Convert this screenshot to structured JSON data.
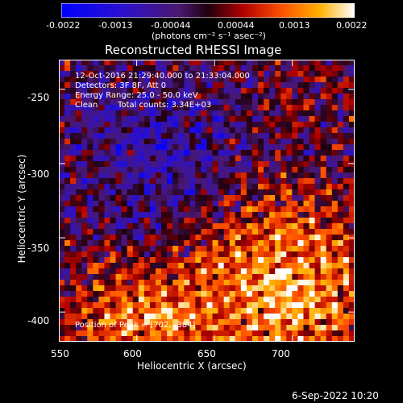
{
  "chart_data": {
    "type": "heatmap",
    "title": "Reconstructed RHESSI Image",
    "xlabel": "Heliocentric X (arcsec)",
    "ylabel": "Heliocentric Y (arcsec)",
    "xlim": [
      550,
      740
    ],
    "ylim": [
      -420,
      -230
    ],
    "xticks": [
      "550",
      "600",
      "650",
      "700"
    ],
    "yticks": [
      "-250",
      "-300",
      "-350",
      "-400"
    ],
    "colorbar": {
      "ticks": [
        "-0.0022",
        "-0.0013",
        "-0.00044",
        "0.00044",
        "0.0013",
        "0.0022"
      ],
      "range": [
        -0.0022,
        0.0022
      ],
      "units_label": "(photons cm⁻² s⁻¹ asec⁻²)"
    },
    "annotations": {
      "time": "12-Oct-2016 21:29:40.000 to 21:33:04.000",
      "detectors": "Detectors: 3F 8F, Att 0",
      "energy": "Energy Range: 25.0 - 50.0 keV",
      "clean": "Clean",
      "counts": "Total counts: 3.34E+03",
      "peak": "Position of Peak = [702, -384]"
    },
    "peak": [
      702,
      -384
    ],
    "colors": {
      "negative": "#0000ff",
      "mid": "#5a1a8a",
      "positive": "#ff6600",
      "max": "#ffffff"
    }
  },
  "footer": {
    "date": "6-Sep-2022 10:20"
  }
}
